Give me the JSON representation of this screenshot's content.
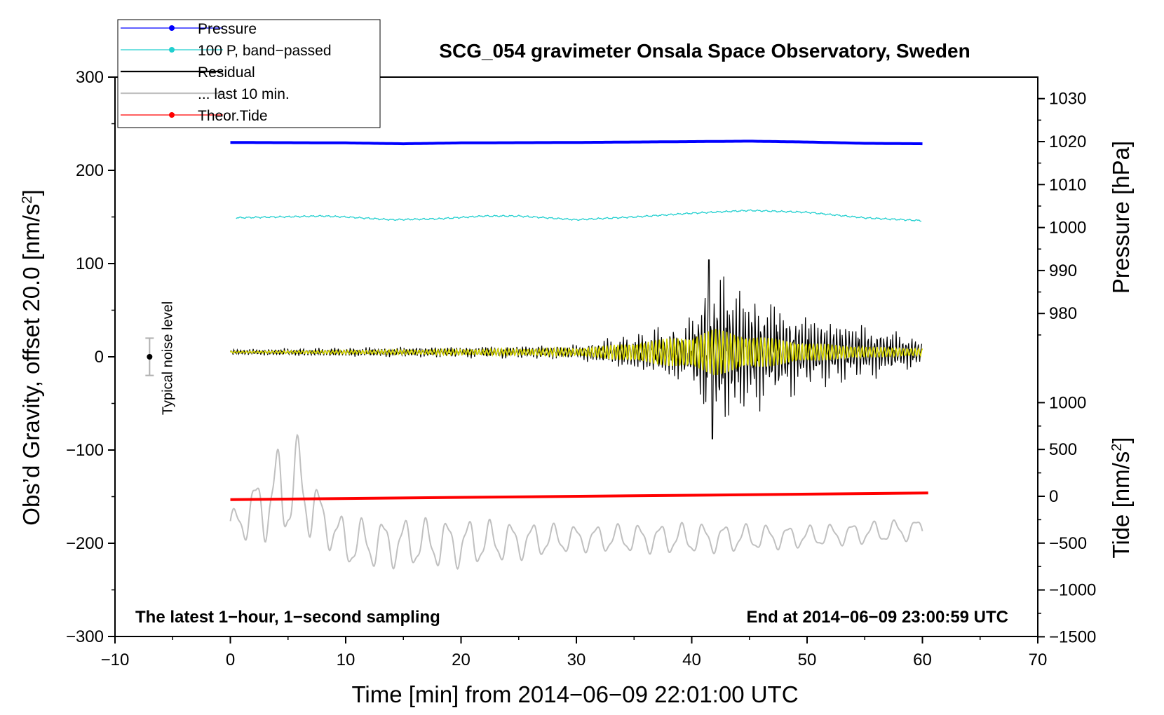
{
  "chart_data": {
    "type": "line",
    "title": "SCG_054 gravimeter Onsala Space Observatory, Sweden",
    "xlabel": "Time [min] from 2014−06−09 22:01:00 UTC",
    "ylabel_left": "Obs’d Gravity, offset 20.0 [nm/s²]",
    "ylabel_left_main": "Obs’d Gravity, offset 20.0 [nm/s",
    "ylabel_right_top": "Pressure [hPa]",
    "ylabel_right_bottom_main": "Tide [nm/s",
    "ylabel_unit_sup": "2",
    "ylabel_unit_close": "]",
    "xlim": [
      -10,
      70
    ],
    "ylim_left": [
      -300,
      300
    ],
    "x_ticks": [
      -10,
      0,
      10,
      20,
      30,
      40,
      50,
      60,
      70
    ],
    "x_tick_labels": [
      "−10",
      "0",
      "10",
      "20",
      "30",
      "40",
      "50",
      "60",
      "70"
    ],
    "y_left_ticks": [
      300,
      200,
      100,
      0,
      -100,
      -200,
      -300
    ],
    "y_left_tick_labels": [
      "300",
      "200",
      "100",
      "0",
      "−100",
      "−200",
      "−300"
    ],
    "pressure_axis": {
      "ticks": [
        1030,
        1020,
        1010,
        1000,
        990,
        980
      ],
      "tick_labels": [
        "1030",
        "1020",
        "1010",
        "1000",
        "990",
        "980"
      ]
    },
    "tide_axis": {
      "ticks": [
        1000,
        500,
        0,
        -500,
        -1000,
        -1500
      ],
      "tick_labels": [
        "1000",
        "500",
        "0",
        "−500",
        "−1000",
        "−1500"
      ]
    },
    "legend": {
      "position": "top-left",
      "entries": [
        {
          "label": "Pressure",
          "color": "#0000ff",
          "marker": true
        },
        {
          "label": "100 P, band−passed",
          "color": "#20cfcf",
          "marker": true
        },
        {
          "label": "Residual",
          "color": "#000000",
          "marker": false
        },
        {
          "label": "... last 10 min.",
          "color": "#c0c0c0",
          "marker": false
        },
        {
          "label": "Theor.Tide",
          "color": "#ff0000",
          "marker": true
        }
      ]
    },
    "series": [
      {
        "name": "Pressure",
        "color": "#0000ff",
        "axis": "pressure",
        "x": [
          0,
          10,
          15,
          20,
          30,
          40,
          45,
          50,
          55,
          60
        ],
        "values": [
          1019.8,
          1019.7,
          1019.5,
          1019.7,
          1019.8,
          1020.0,
          1020.1,
          1019.9,
          1019.6,
          1019.5
        ]
      },
      {
        "name": "100 P, band−passed",
        "color": "#20cfcf",
        "axis": "left",
        "x": [
          0,
          4,
          8,
          10,
          14,
          18,
          22,
          25,
          30,
          35,
          40,
          45,
          50,
          55,
          60
        ],
        "values": [
          149,
          150,
          151,
          150,
          147,
          148,
          151,
          151,
          147,
          150,
          154,
          157,
          155,
          149,
          146
        ]
      },
      {
        "name": "Residual",
        "color": "#000000",
        "axis": "left",
        "x": [
          0,
          10,
          20,
          30,
          35,
          40,
          41.5,
          42,
          45,
          50,
          55,
          60
        ],
        "values": [
          5,
          5,
          5,
          5,
          5,
          5,
          104,
          -88,
          5,
          5,
          5,
          5
        ],
        "envelope": {
          "x": [
            0,
            10,
            20,
            30,
            35,
            40,
            41.5,
            45,
            50,
            55,
            60
          ],
          "amplitude": [
            3,
            5,
            6,
            8,
            20,
            35,
            95,
            65,
            40,
            30,
            15
          ]
        }
      },
      {
        "name": "... last 10 min.",
        "color": "#c0c0c0",
        "axis": "left",
        "x": [
          0,
          4.5,
          6,
          8,
          10,
          20,
          30,
          40,
          50,
          60
        ],
        "values": [
          -182,
          -145,
          -138,
          -175,
          -200,
          -200,
          -195,
          -195,
          -193,
          -185
        ],
        "oscillation_amplitude": [
          12,
          45,
          45,
          20,
          22,
          22,
          12,
          14,
          10,
          10
        ]
      },
      {
        "name": "Theor.Tide",
        "color": "#ff0000",
        "axis": "tide",
        "x": [
          0,
          60.5
        ],
        "values": [
          -35,
          35
        ]
      },
      {
        "name": "Residual (smoothed)",
        "color": "#d8d800",
        "axis": "left",
        "x": [
          0,
          35,
          41.5,
          45,
          60
        ],
        "values": [
          5,
          5,
          5,
          5,
          5
        ]
      }
    ],
    "annotations": [
      {
        "text": "The latest 1−hour, 1−second sampling",
        "position": "bottom-left"
      },
      {
        "text": "End at 2014−06−09 23:00:59 UTC",
        "position": "bottom-right"
      },
      {
        "text": "Typical noise level",
        "x": -7,
        "y": 0,
        "error_bar": [
          -20,
          20
        ]
      }
    ]
  }
}
